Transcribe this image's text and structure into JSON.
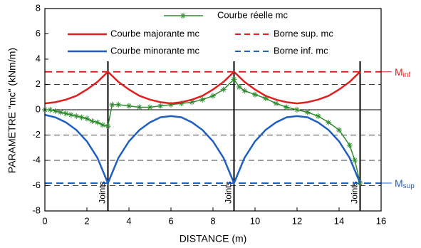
{
  "chart_data": {
    "type": "line",
    "xlabel": "DISTANCE (m)",
    "ylabel": "PARAMETRE \"mc\" (kNm/m)",
    "xlim": [
      0,
      16
    ],
    "xticks": [
      0,
      2,
      4,
      6,
      8,
      10,
      12,
      14,
      16
    ],
    "ylim": [
      -8,
      8
    ],
    "yticks": [
      -8,
      -6,
      -4,
      -2,
      0,
      2,
      4,
      6,
      8
    ],
    "grid_lines": [
      2,
      -2,
      -4,
      -6
    ],
    "legend": "top",
    "joints": [
      {
        "x": 3,
        "label": "Joints"
      },
      {
        "x": 9,
        "label": "Joints"
      },
      {
        "x": 15,
        "label": "Joints"
      }
    ],
    "series": [
      {
        "name": "Courbe réelle mc",
        "color": "#2e8b2e",
        "marker": "star",
        "x": [
          0,
          0.25,
          0.5,
          0.75,
          1,
          1.25,
          1.5,
          1.75,
          2,
          2.25,
          2.5,
          2.75,
          3,
          3.2,
          3.5,
          4,
          4.5,
          5,
          5.5,
          6,
          6.5,
          7,
          7.5,
          8,
          8.5,
          9,
          9.25,
          9.5,
          10,
          10.5,
          11,
          11.5,
          12,
          12.5,
          13,
          13.5,
          14,
          14.5,
          14.75,
          15
        ],
        "values": [
          0,
          0,
          -0.1,
          -0.2,
          -0.3,
          -0.4,
          -0.5,
          -0.6,
          -0.7,
          -0.9,
          -1,
          -1.2,
          -1.3,
          0.4,
          0.4,
          0.3,
          0.2,
          0.2,
          0.3,
          0.4,
          0.5,
          0.6,
          0.8,
          1.1,
          1.6,
          2.4,
          1.8,
          1.5,
          1.2,
          0.9,
          0.5,
          0.2,
          0,
          -0.2,
          -0.5,
          -1,
          -1.6,
          -2.8,
          -4,
          -5.8
        ]
      },
      {
        "name": "Courbe majorante mc",
        "color": "#e02020",
        "x": [
          0,
          0.5,
          1,
          1.5,
          2,
          2.5,
          3,
          3.5,
          4,
          4.5,
          5,
          5.5,
          6,
          6.5,
          7,
          7.5,
          8,
          8.5,
          9,
          9.5,
          10,
          10.5,
          11,
          11.5,
          12,
          12.5,
          13,
          13.5,
          14,
          14.5,
          15
        ],
        "values": [
          0.5,
          0.6,
          0.8,
          1.1,
          1.6,
          2.2,
          3,
          2.2,
          1.6,
          1.1,
          0.8,
          0.6,
          0.5,
          0.6,
          0.8,
          1.1,
          1.6,
          2.2,
          3,
          2.2,
          1.6,
          1.1,
          0.8,
          0.6,
          0.5,
          0.6,
          0.8,
          1.1,
          1.6,
          2.2,
          3
        ]
      },
      {
        "name": "Courbe minorante mc",
        "color": "#1f5fc0",
        "x": [
          0,
          0.5,
          1,
          1.5,
          2,
          2.5,
          3,
          3.5,
          4,
          4.5,
          5,
          5.5,
          6,
          6.5,
          7,
          7.5,
          8,
          8.5,
          9,
          9.5,
          10,
          10.5,
          11,
          11.5,
          12,
          12.5,
          13,
          13.5,
          14,
          14.5,
          15
        ],
        "values": [
          -0.4,
          -0.6,
          -1,
          -1.6,
          -2.5,
          -3.8,
          -5.8,
          -3.8,
          -2.5,
          -1.6,
          -1,
          -0.6,
          -0.5,
          -0.6,
          -1,
          -1.6,
          -2.5,
          -3.8,
          -5.8,
          -3.8,
          -2.5,
          -1.6,
          -1,
          -0.6,
          -0.5,
          -0.6,
          -1,
          -1.6,
          -2.5,
          -3.8,
          -5.8
        ]
      }
    ],
    "reference_lines": [
      {
        "name": "Borne sup. mc",
        "y": 3,
        "color": "#e02020",
        "label": "M",
        "sub": "inf"
      },
      {
        "name": "Borne inf. mc",
        "y": -5.8,
        "color": "#1f5fc0",
        "label": "M",
        "sub": "sup"
      }
    ]
  }
}
